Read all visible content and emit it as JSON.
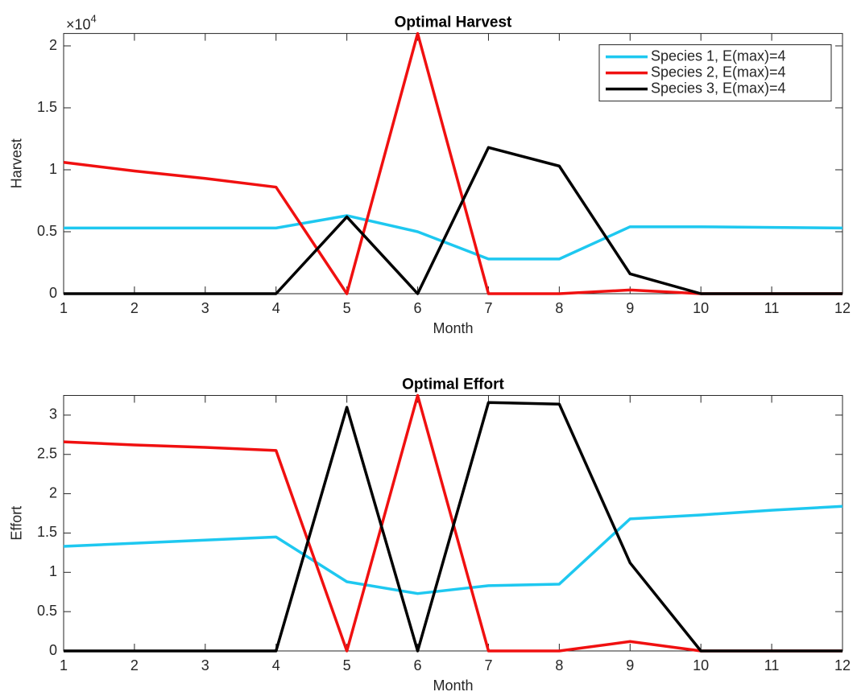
{
  "chart_data": [
    {
      "type": "line",
      "title": "Optimal Harvest",
      "x_label": "Month",
      "y_label": "Harvest",
      "y_exponent": {
        "base": "×10",
        "power": "4"
      },
      "x": [
        1,
        2,
        3,
        4,
        5,
        6,
        7,
        8,
        9,
        10,
        11,
        12
      ],
      "xlim": [
        1,
        12
      ],
      "xticks": [
        1,
        2,
        3,
        4,
        5,
        6,
        7,
        8,
        9,
        10,
        11,
        12
      ],
      "ylim": [
        0,
        2.1
      ],
      "yticks": [
        0,
        0.5,
        1,
        1.5,
        2
      ],
      "legend": "northeast",
      "series": [
        {
          "name": "Species 1, E(max)=4",
          "color": "#1ec8f0",
          "values": [
            0.53,
            0.53,
            0.53,
            0.53,
            0.63,
            0.5,
            0.28,
            0.28,
            0.54,
            0.54,
            0.535,
            0.53
          ]
        },
        {
          "name": "Species 2, E(max)=4",
          "color": "#f01010",
          "values": [
            1.06,
            0.99,
            0.93,
            0.86,
            0,
            2.1,
            0,
            0,
            0.03,
            0,
            0,
            0
          ]
        },
        {
          "name": "Species 3, E(max)=4",
          "color": "#000000",
          "values": [
            0,
            0,
            0,
            0,
            0.62,
            0,
            1.18,
            1.03,
            0.16,
            0,
            0,
            0
          ]
        }
      ]
    },
    {
      "type": "line",
      "title": "Optimal Effort",
      "x_label": "Month",
      "y_label": "Effort",
      "x": [
        1,
        2,
        3,
        4,
        5,
        6,
        7,
        8,
        9,
        10,
        11,
        12
      ],
      "xlim": [
        1,
        12
      ],
      "xticks": [
        1,
        2,
        3,
        4,
        5,
        6,
        7,
        8,
        9,
        10,
        11,
        12
      ],
      "ylim": [
        0,
        3.25
      ],
      "yticks": [
        0,
        0.5,
        1,
        1.5,
        2,
        2.5,
        3
      ],
      "series": [
        {
          "color": "#1ec8f0",
          "values": [
            1.33,
            1.37,
            1.41,
            1.45,
            0.88,
            0.73,
            0.83,
            0.85,
            1.68,
            1.73,
            1.79,
            1.84
          ]
        },
        {
          "color": "#f01010",
          "values": [
            2.66,
            2.62,
            2.59,
            2.55,
            0,
            3.25,
            0,
            0,
            0.12,
            0,
            0,
            0
          ]
        },
        {
          "color": "#000000",
          "values": [
            0,
            0,
            0,
            0,
            3.1,
            0,
            3.16,
            3.14,
            1.12,
            0,
            0,
            0
          ]
        }
      ]
    }
  ]
}
